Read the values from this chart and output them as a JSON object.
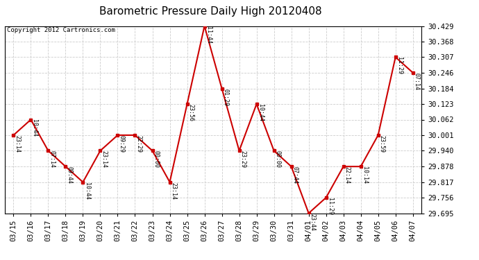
{
  "title": "Barometric Pressure Daily High 20120408",
  "copyright": "Copyright 2012 Cartronics.com",
  "x_labels": [
    "03/15",
    "03/16",
    "03/17",
    "03/18",
    "03/19",
    "03/20",
    "03/21",
    "03/22",
    "03/23",
    "03/24",
    "03/25",
    "03/26",
    "03/27",
    "03/28",
    "03/29",
    "03/30",
    "03/31",
    "04/01",
    "04/02",
    "04/03",
    "04/04",
    "04/05",
    "04/06",
    "04/07"
  ],
  "y_values": [
    30.001,
    30.062,
    29.94,
    29.878,
    29.817,
    29.94,
    30.001,
    30.001,
    29.94,
    29.817,
    30.123,
    30.429,
    30.184,
    29.94,
    30.123,
    29.94,
    29.878,
    29.695,
    29.756,
    29.878,
    29.878,
    30.001,
    30.307,
    30.246
  ],
  "point_labels": [
    "23:14",
    "10:44",
    "07:14",
    "09:44",
    "10:44",
    "23:14",
    "09:29",
    "22:29",
    "00:00",
    "23:14",
    "23:56",
    "11:44",
    "01:29",
    "23:29",
    "10:44",
    "00:00",
    "07:44",
    "23:44",
    "11:29",
    "22:14",
    "10:14",
    "23:59",
    "11:29",
    "07:14"
  ],
  "y_ticks": [
    29.695,
    29.756,
    29.817,
    29.878,
    29.94,
    30.001,
    30.062,
    30.123,
    30.184,
    30.246,
    30.307,
    30.368,
    30.429
  ],
  "y_min": 29.695,
  "y_max": 30.429,
  "line_color": "#cc0000",
  "marker_color": "#cc0000",
  "bg_color": "#ffffff",
  "grid_color": "#cccccc",
  "title_fontsize": 11,
  "copyright_fontsize": 6.5,
  "label_fontsize": 6,
  "tick_fontsize": 7.5
}
